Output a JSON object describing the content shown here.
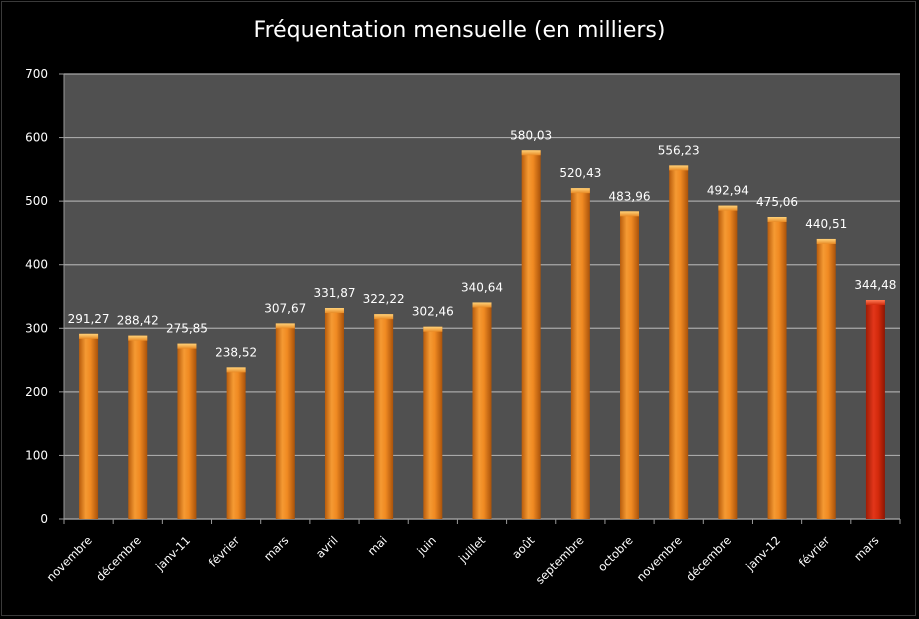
{
  "chart_data": {
    "type": "bar",
    "title": "Fréquentation mensuelle (en milliers)",
    "categories": [
      "novembre",
      "décembre",
      "janv-11",
      "février",
      "mars",
      "avril",
      "mai",
      "juin",
      "juillet",
      "août",
      "septembre",
      "octobre",
      "novembre",
      "décembre",
      "janv-12",
      "février",
      "mars"
    ],
    "values": [
      291.27,
      288.42,
      275.85,
      238.52,
      307.67,
      331.87,
      322.22,
      302.46,
      340.64,
      580.03,
      520.43,
      483.96,
      556.23,
      492.94,
      475.06,
      440.51,
      344.48
    ],
    "data_labels": [
      "291,27",
      "288,42",
      "275,85",
      "238,52",
      "307,67",
      "331,87",
      "322,22",
      "302,46",
      "340,64",
      "580,03",
      "520,43",
      "483,96",
      "556,23",
      "492,94",
      "475,06",
      "440,51",
      "344,48"
    ],
    "highlight_index": 16,
    "ylim": [
      0,
      700
    ],
    "yticks": [
      0,
      100,
      200,
      300,
      400,
      500,
      600,
      700
    ],
    "xlabel": "",
    "ylabel": "",
    "grid": true,
    "colors": {
      "background": "#000000",
      "plot_area": "#505050",
      "grid": "#a8a8a8",
      "bar": "#e8821f",
      "bar_highlight": "#d12a0a",
      "text": "#ffffff"
    }
  }
}
